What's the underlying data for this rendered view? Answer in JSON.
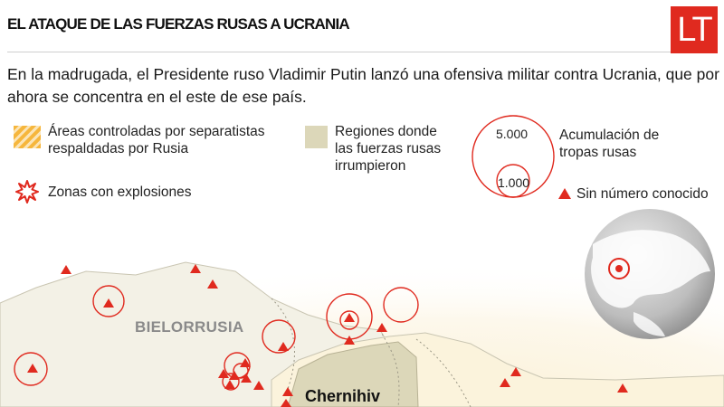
{
  "header": {
    "title": "EL ATAQUE DE LAS FUERZAS RUSAS A UCRANIA",
    "logo_text": "LT"
  },
  "lead": "En la madrugada, el Presidente ruso Vladimir Putin lanzó una ofensiva militar contra Ucrania, que por ahora se concentra en el este de ese país.",
  "legend": {
    "separatist_line1": "Áreas controladas por separatistas",
    "separatist_line2": "respaldadas por Rusia",
    "regions_line1": "Regiones donde",
    "regions_line2": "las fuerzas rusas",
    "regions_line3": "irrumpieron",
    "explosions": "Zonas con explosiones",
    "troops_line1": "Acumulación de",
    "troops_line2": "tropas rusas",
    "troops_large": "5.000",
    "troops_small": "1.000",
    "unknown": "Sin número conocido"
  },
  "map": {
    "labels": {
      "belarus": "BIELORRUSIA",
      "chernihiv": "Chernihiv"
    },
    "colors": {
      "accent": "#e02a1f",
      "region": "#dcd7b9",
      "separatist": "#f6b63c",
      "label_gray": "#8a8a8a"
    }
  }
}
